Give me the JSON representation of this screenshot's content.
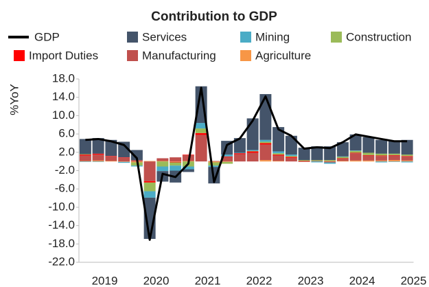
{
  "chart_data": {
    "type": "bar",
    "title": "Contribution to GDP",
    "y_label": "%YoY",
    "categories": [
      null,
      "2019",
      null,
      null,
      null,
      "2020",
      null,
      null,
      null,
      "2021",
      null,
      null,
      null,
      "2022",
      null,
      null,
      null,
      "2023",
      null,
      null,
      null,
      "2024",
      null,
      null,
      null,
      "2025"
    ],
    "series": [
      {
        "name": "Services",
        "color": "#44546a",
        "values": [
          3.3,
          3.4,
          3.5,
          3.4,
          2.2,
          -9.0,
          -2.3,
          -2.6,
          -0.6,
          8.0,
          -3.6,
          3.0,
          3.2,
          6.9,
          10.0,
          5.3,
          4.1,
          2.7,
          3.0,
          3.0,
          3.1,
          3.5,
          3.4,
          3.0,
          2.9,
          3.2
        ]
      },
      {
        "name": "Mining",
        "color": "#4bacc6",
        "values": [
          -0.1,
          -0.1,
          0.0,
          -0.2,
          -0.2,
          -1.4,
          -1.0,
          -1.1,
          -0.6,
          1.2,
          -0.3,
          0.4,
          0.1,
          0.2,
          0.4,
          0.4,
          0.3,
          0.0,
          -0.2,
          -0.3,
          0.1,
          0.1,
          0.0,
          -0.2,
          -0.1,
          -0.2
        ]
      },
      {
        "name": "Construction",
        "color": "#9bbb59",
        "values": [
          0.1,
          0.0,
          0.0,
          0.0,
          -0.7,
          -1.9,
          -1.1,
          -0.7,
          -1.1,
          1.0,
          -0.7,
          -0.4,
          0.0,
          0.1,
          0.3,
          0.3,
          0.2,
          0.2,
          0.2,
          0.2,
          0.3,
          0.4,
          0.5,
          0.4,
          0.3,
          0.3
        ]
      },
      {
        "name": "Import Duties",
        "color": "#ff0000",
        "values": [
          0.2,
          0.2,
          0.1,
          0.1,
          0.0,
          -0.3,
          0.0,
          -0.1,
          0.1,
          0.4,
          0.0,
          0.1,
          0.2,
          0.3,
          0.3,
          0.2,
          0.2,
          0.1,
          0.0,
          0.0,
          0.1,
          0.1,
          0.1,
          0.1,
          0.1,
          0.1
        ]
      },
      {
        "name": "Manufacturing",
        "color": "#c0504d",
        "values": [
          1.2,
          1.3,
          1.0,
          0.8,
          0.3,
          -4.3,
          0.6,
          0.9,
          1.3,
          5.8,
          0.1,
          1.0,
          1.6,
          1.9,
          3.4,
          1.2,
          0.8,
          -0.1,
          0.1,
          -0.2,
          0.5,
          1.6,
          1.1,
          1.0,
          1.0,
          0.9
        ]
      },
      {
        "name": "Agriculture",
        "color": "#f79646",
        "values": [
          0.1,
          0.2,
          0.1,
          -0.1,
          -0.2,
          0.1,
          0.1,
          -0.1,
          0.1,
          0.0,
          -0.2,
          -0.1,
          0.0,
          0.0,
          0.3,
          0.1,
          0.0,
          0.0,
          0.0,
          0.1,
          0.1,
          0.2,
          0.2,
          0.2,
          0.3,
          0.2
        ]
      }
    ],
    "line": {
      "name": "GDP",
      "color": "#000000",
      "values": [
        4.7,
        4.9,
        4.4,
        3.6,
        0.7,
        -17.1,
        -2.7,
        -3.4,
        -0.5,
        16.1,
        -4.5,
        3.6,
        5.0,
        8.9,
        14.2,
        7.0,
        5.6,
        2.8,
        3.1,
        2.9,
        4.2,
        5.9,
        5.4,
        4.9,
        4.4,
        4.4
      ]
    },
    "ylim": [
      -22,
      18
    ],
    "yticks": [
      {
        "value": -22,
        "label": "-22.0"
      },
      {
        "value": -18,
        "label": "-18.0"
      },
      {
        "value": -14,
        "label": "-14.0"
      },
      {
        "value": -10,
        "label": "-10.0"
      },
      {
        "value": -6,
        "label": "-6.0"
      },
      {
        "value": -2,
        "label": "-2.0"
      },
      {
        "value": 2,
        "label": "2.0"
      },
      {
        "value": 6,
        "label": "6.0"
      },
      {
        "value": 10,
        "label": "10.0"
      },
      {
        "value": 14,
        "label": "14.0"
      },
      {
        "value": 18,
        "label": "18.0"
      }
    ],
    "grid": false
  }
}
